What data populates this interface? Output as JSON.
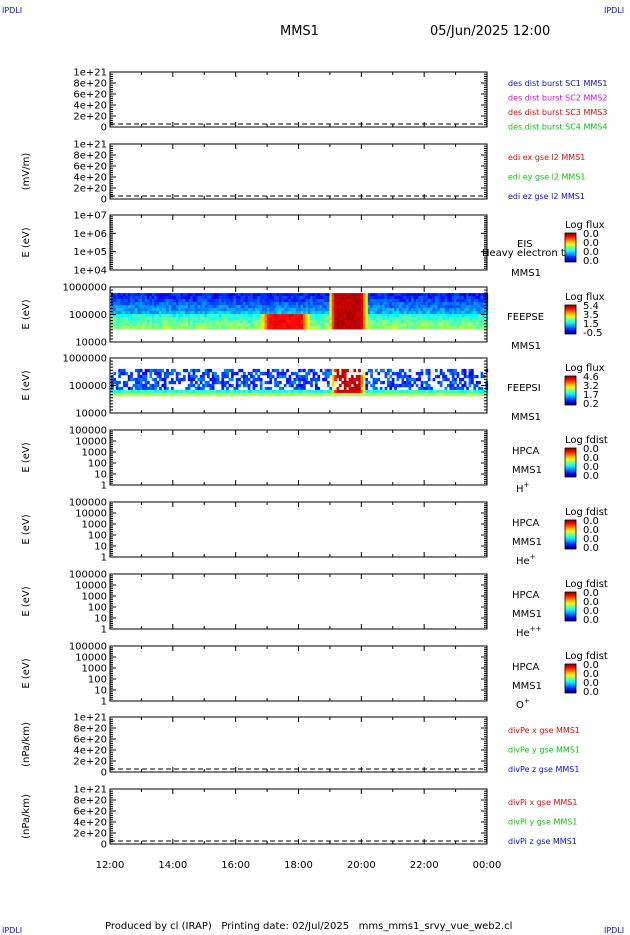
{
  "header": {
    "corner_text": "IPDLI",
    "title": "MMS1",
    "date": "05/Jun/2025 12:00"
  },
  "footer": {
    "produced_by": "Produced by cl (IRAP)",
    "printing_date": "Printing date: 02/Jul/2025",
    "file": "mms_mms1_srvy_vue_web2.cl"
  },
  "colors": {
    "blue": "#1010c8",
    "magenta": "#d010d0",
    "red": "#d01010",
    "green": "#10c010"
  },
  "chart_data": [
    {
      "id": "dist-burst",
      "type": "line",
      "ylabel": "",
      "ticks": [
        "1e+21",
        "8e+20",
        "6e+20",
        "4e+20",
        "2e+20",
        "0"
      ],
      "legend": [
        {
          "text": "des dist burst SC1 MMS1",
          "color": "blue"
        },
        {
          "text": "des dist burst SC2 MMS2",
          "color": "magenta"
        },
        {
          "text": "des dist burst SC3 MMS3",
          "color": "red"
        },
        {
          "text": "des dist burst SC4 MMS4",
          "color": "green"
        }
      ],
      "series": []
    },
    {
      "id": "edi-e",
      "type": "line",
      "ylabel": "(mV/m)",
      "ticks": [
        "1e+21",
        "8e+20",
        "6e+20",
        "4e+20",
        "2e+20",
        "0"
      ],
      "legend": [
        {
          "text": "edi ex gse l2 MMS1",
          "color": "red"
        },
        {
          "text": "edi ey gse l2 MMS1",
          "color": "green"
        },
        {
          "text": "edi ez gse l2 MMS1",
          "color": "blue"
        }
      ],
      "series": []
    },
    {
      "id": "eis",
      "type": "heatmap",
      "ylabel": "E (eV)",
      "ticks": [
        "1e+07",
        "1e+06",
        "1e+05",
        "1e+04"
      ],
      "right_labels": [
        "EIS",
        "MMS1"
      ],
      "overlay_label": "Heavy electron te",
      "colorbar": {
        "title": "Log flux",
        "values": [
          "0.0",
          "0.0",
          "0.0",
          "0.0"
        ]
      }
    },
    {
      "id": "feepse",
      "type": "heatmap",
      "ylabel": "E (eV)",
      "ticks": [
        "1000000",
        "100000",
        "10000"
      ],
      "right_labels": [
        "FEEPSE",
        "MMS1"
      ],
      "colorbar": {
        "title": "Log flux",
        "values": [
          "5.4",
          "3.5",
          "1.5",
          "-0.5"
        ]
      },
      "scale": "log",
      "ylim": [
        10000,
        1000000
      ],
      "band_ev": [
        30000,
        600000
      ],
      "events": [
        {
          "start": "16:45",
          "end": "18:20",
          "low_ev": 30000,
          "high_ev": 110000,
          "level": 4.8
        },
        {
          "start": "18:55",
          "end": "20:10",
          "low_ev": 30000,
          "high_ev": 600000,
          "level": 5.2
        }
      ]
    },
    {
      "id": "feepsi",
      "type": "heatmap",
      "ylabel": "E (eV)",
      "ticks": [
        "1000000",
        "100000",
        "10000"
      ],
      "right_labels": [
        "FEEPSI",
        "MMS1"
      ],
      "colorbar": {
        "title": "Log flux",
        "values": [
          "4.6",
          "3.2",
          "1.7",
          "0.2"
        ]
      },
      "scale": "log",
      "ylim": [
        10000,
        1000000
      ],
      "band_ev": [
        45000,
        400000
      ],
      "events": [
        {
          "start": "19:00",
          "end": "20:05",
          "low_ev": 55000,
          "high_ev": 400000,
          "level": 4.4
        }
      ]
    },
    {
      "id": "hpca-h",
      "type": "heatmap",
      "ylabel": "E (eV)",
      "ticks": [
        "100000",
        "10000",
        "1000",
        "100",
        "10",
        "1"
      ],
      "right_labels": [
        "HPCA",
        "MMS1"
      ],
      "species": "H",
      "species_sup": "+",
      "colorbar": {
        "title": "Log fdist",
        "values": [
          "0.0",
          "0.0",
          "0.0",
          "0.0"
        ]
      }
    },
    {
      "id": "hpca-he1",
      "type": "heatmap",
      "ylabel": "E (eV)",
      "ticks": [
        "100000",
        "10000",
        "1000",
        "100",
        "10",
        "1"
      ],
      "right_labels": [
        "HPCA",
        "MMS1"
      ],
      "species": "He",
      "species_sup": "+",
      "colorbar": {
        "title": "Log fdist",
        "values": [
          "0.0",
          "0.0",
          "0.0",
          "0.0"
        ]
      }
    },
    {
      "id": "hpca-he2",
      "type": "heatmap",
      "ylabel": "E (eV)",
      "ticks": [
        "100000",
        "10000",
        "1000",
        "100",
        "10",
        "1"
      ],
      "right_labels": [
        "HPCA",
        "MMS1"
      ],
      "species": "He",
      "species_sup": "++",
      "colorbar": {
        "title": "Log fdist",
        "values": [
          "0.0",
          "0.0",
          "0.0",
          "0.0"
        ]
      }
    },
    {
      "id": "hpca-o",
      "type": "heatmap",
      "ylabel": "E (eV)",
      "ticks": [
        "100000",
        "10000",
        "1000",
        "100",
        "10",
        "1"
      ],
      "right_labels": [
        "HPCA",
        "MMS1"
      ],
      "species": "O",
      "species_sup": "+",
      "colorbar": {
        "title": "Log fdist",
        "values": [
          "0.0",
          "0.0",
          "0.0",
          "0.0"
        ]
      }
    },
    {
      "id": "divpe",
      "type": "line",
      "ylabel": "(nPa/km)",
      "ticks": [
        "1e+21",
        "8e+20",
        "6e+20",
        "4e+20",
        "2e+20",
        "0"
      ],
      "legend": [
        {
          "text": "divPe x gse MMS1",
          "color": "red"
        },
        {
          "text": "divPe y gse MMS1",
          "color": "green"
        },
        {
          "text": "divPe z gse MMS1",
          "color": "blue"
        }
      ],
      "series": []
    },
    {
      "id": "divpi",
      "type": "line",
      "ylabel": "(nPa/km)",
      "ticks": [
        "1e+21",
        "8e+20",
        "6e+20",
        "4e+20",
        "2e+20",
        "0"
      ],
      "legend": [
        {
          "text": "divPi x gse MMS1",
          "color": "red"
        },
        {
          "text": "divPi y gse MMS1",
          "color": "green"
        },
        {
          "text": "divPi z gse MMS1",
          "color": "blue"
        }
      ],
      "series": []
    }
  ],
  "time_axis": {
    "labels": [
      "12:00",
      "14:00",
      "16:00",
      "18:00",
      "20:00",
      "22:00",
      "00:00"
    ],
    "start_hour": 12,
    "end_hour": 24
  }
}
